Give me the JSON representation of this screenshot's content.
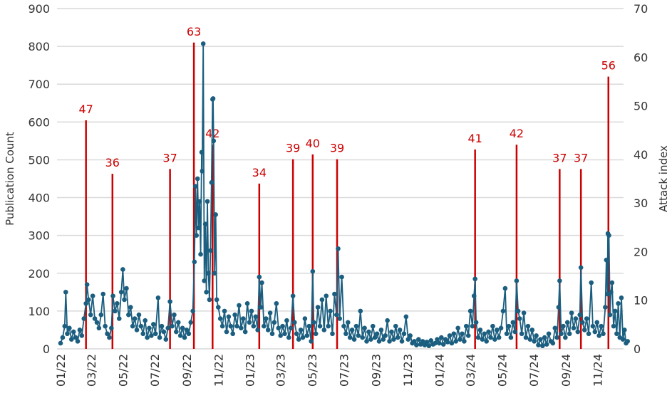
{
  "chart_data": {
    "type": "line",
    "title": "",
    "ylabel": "Publication Count",
    "y2label": "Attack index",
    "ylim": [
      0,
      900
    ],
    "y2lim": [
      0,
      70
    ],
    "yticks": [
      0,
      100,
      200,
      300,
      400,
      500,
      600,
      700,
      800,
      900
    ],
    "y2ticks": [
      0,
      10,
      20,
      30,
      40,
      50,
      60,
      70
    ],
    "grid": true,
    "colors": {
      "publications": "#1b5e7f",
      "attacks": "#cc0000",
      "grid": "#d9d9d9"
    },
    "xticks": [
      {
        "date": "2022-01-01",
        "label": "01/22"
      },
      {
        "date": "2022-03-01",
        "label": "03/22"
      },
      {
        "date": "2022-05-01",
        "label": "05/22"
      },
      {
        "date": "2022-07-01",
        "label": "07/22"
      },
      {
        "date": "2022-09-01",
        "label": "09/22"
      },
      {
        "date": "2022-11-01",
        "label": "11/22"
      },
      {
        "date": "2023-01-01",
        "label": "01/23"
      },
      {
        "date": "2023-03-01",
        "label": "03/23"
      },
      {
        "date": "2023-05-01",
        "label": "05/23"
      },
      {
        "date": "2023-07-01",
        "label": "07/23"
      },
      {
        "date": "2023-09-01",
        "label": "09/23"
      },
      {
        "date": "2023-11-01",
        "label": "11/23"
      },
      {
        "date": "2024-01-01",
        "label": "01/24"
      },
      {
        "date": "2024-03-01",
        "label": "03/24"
      },
      {
        "date": "2024-05-01",
        "label": "05/24"
      },
      {
        "date": "2024-07-01",
        "label": "07/24"
      },
      {
        "date": "2024-09-01",
        "label": "09/24"
      },
      {
        "date": "2024-11-01",
        "label": "11/24"
      }
    ],
    "attacks": [
      {
        "date": "2022-02-19",
        "value": 47
      },
      {
        "date": "2022-04-11",
        "value": 36
      },
      {
        "date": "2022-07-31",
        "value": 37
      },
      {
        "date": "2022-09-15",
        "value": 63
      },
      {
        "date": "2022-10-21",
        "value": 42
      },
      {
        "date": "2023-01-19",
        "value": 34
      },
      {
        "date": "2023-03-25",
        "value": 39
      },
      {
        "date": "2023-05-02",
        "value": 40
      },
      {
        "date": "2023-06-18",
        "value": 39
      },
      {
        "date": "2024-03-10",
        "value": 41
      },
      {
        "date": "2024-05-29",
        "value": 42
      },
      {
        "date": "2024-08-20",
        "value": 37
      },
      {
        "date": "2024-09-30",
        "value": 37
      },
      {
        "date": "2024-11-22",
        "value": 56
      }
    ],
    "publications": [
      [
        "2022-01-01",
        15
      ],
      [
        "2022-01-05",
        30
      ],
      [
        "2022-01-09",
        60
      ],
      [
        "2022-01-11",
        150
      ],
      [
        "2022-01-14",
        40
      ],
      [
        "2022-01-18",
        55
      ],
      [
        "2022-01-22",
        25
      ],
      [
        "2022-01-26",
        45
      ],
      [
        "2022-01-30",
        30
      ],
      [
        "2022-02-03",
        20
      ],
      [
        "2022-02-07",
        50
      ],
      [
        "2022-02-11",
        35
      ],
      [
        "2022-02-15",
        80
      ],
      [
        "2022-02-19",
        120
      ],
      [
        "2022-02-21",
        170
      ],
      [
        "2022-02-24",
        130
      ],
      [
        "2022-02-28",
        90
      ],
      [
        "2022-03-04",
        140
      ],
      [
        "2022-03-08",
        80
      ],
      [
        "2022-03-12",
        70
      ],
      [
        "2022-03-16",
        55
      ],
      [
        "2022-03-20",
        90
      ],
      [
        "2022-03-24",
        145
      ],
      [
        "2022-03-28",
        60
      ],
      [
        "2022-04-01",
        40
      ],
      [
        "2022-04-05",
        30
      ],
      [
        "2022-04-09",
        55
      ],
      [
        "2022-04-12",
        140
      ],
      [
        "2022-04-16",
        100
      ],
      [
        "2022-04-20",
        120
      ],
      [
        "2022-04-24",
        80
      ],
      [
        "2022-04-28",
        150
      ],
      [
        "2022-05-01",
        210
      ],
      [
        "2022-05-04",
        130
      ],
      [
        "2022-05-08",
        160
      ],
      [
        "2022-05-12",
        90
      ],
      [
        "2022-05-16",
        110
      ],
      [
        "2022-05-20",
        60
      ],
      [
        "2022-05-24",
        80
      ],
      [
        "2022-05-28",
        50
      ],
      [
        "2022-06-01",
        90
      ],
      [
        "2022-06-05",
        60
      ],
      [
        "2022-06-09",
        40
      ],
      [
        "2022-06-13",
        75
      ],
      [
        "2022-06-17",
        30
      ],
      [
        "2022-06-21",
        55
      ],
      [
        "2022-06-25",
        35
      ],
      [
        "2022-06-29",
        65
      ],
      [
        "2022-07-03",
        40
      ],
      [
        "2022-07-08",
        135
      ],
      [
        "2022-07-11",
        30
      ],
      [
        "2022-07-15",
        60
      ],
      [
        "2022-07-19",
        45
      ],
      [
        "2022-07-23",
        25
      ],
      [
        "2022-07-27",
        55
      ],
      [
        "2022-07-31",
        125
      ],
      [
        "2022-08-04",
        60
      ],
      [
        "2022-08-08",
        90
      ],
      [
        "2022-08-12",
        45
      ],
      [
        "2022-08-16",
        70
      ],
      [
        "2022-08-20",
        35
      ],
      [
        "2022-08-24",
        55
      ],
      [
        "2022-08-28",
        30
      ],
      [
        "2022-09-01",
        50
      ],
      [
        "2022-09-05",
        40
      ],
      [
        "2022-09-09",
        70
      ],
      [
        "2022-09-13",
        100
      ],
      [
        "2022-09-16",
        230
      ],
      [
        "2022-09-18",
        430
      ],
      [
        "2022-09-20",
        300
      ],
      [
        "2022-09-22",
        450
      ],
      [
        "2022-09-24",
        320
      ],
      [
        "2022-09-26",
        390
      ],
      [
        "2022-09-28",
        250
      ],
      [
        "2022-09-30",
        520
      ],
      [
        "2022-10-01",
        470
      ],
      [
        "2022-10-03",
        807
      ],
      [
        "2022-10-05",
        180
      ],
      [
        "2022-10-07",
        330
      ],
      [
        "2022-10-09",
        150
      ],
      [
        "2022-10-11",
        390
      ],
      [
        "2022-10-13",
        200
      ],
      [
        "2022-10-15",
        130
      ],
      [
        "2022-10-17",
        260
      ],
      [
        "2022-10-19",
        440
      ],
      [
        "2022-10-21",
        660
      ],
      [
        "2022-10-22",
        662
      ],
      [
        "2022-10-23",
        550
      ],
      [
        "2022-10-25",
        200
      ],
      [
        "2022-10-27",
        355
      ],
      [
        "2022-10-29",
        130
      ],
      [
        "2022-11-01",
        110
      ],
      [
        "2022-11-05",
        80
      ],
      [
        "2022-11-09",
        60
      ],
      [
        "2022-11-13",
        100
      ],
      [
        "2022-11-17",
        45
      ],
      [
        "2022-11-21",
        85
      ],
      [
        "2022-11-25",
        60
      ],
      [
        "2022-11-29",
        40
      ],
      [
        "2022-12-03",
        90
      ],
      [
        "2022-12-07",
        60
      ],
      [
        "2022-12-11",
        115
      ],
      [
        "2022-12-15",
        55
      ],
      [
        "2022-12-19",
        80
      ],
      [
        "2022-12-23",
        45
      ],
      [
        "2022-12-27",
        120
      ],
      [
        "2022-12-31",
        70
      ],
      [
        "2023-01-04",
        100
      ],
      [
        "2023-01-08",
        60
      ],
      [
        "2023-01-12",
        85
      ],
      [
        "2023-01-16",
        50
      ],
      [
        "2023-01-19",
        190
      ],
      [
        "2023-01-22",
        110
      ],
      [
        "2023-01-24",
        175
      ],
      [
        "2023-01-28",
        60
      ],
      [
        "2023-02-01",
        80
      ],
      [
        "2023-02-05",
        50
      ],
      [
        "2023-02-09",
        95
      ],
      [
        "2023-02-13",
        40
      ],
      [
        "2023-02-17",
        70
      ],
      [
        "2023-02-21",
        120
      ],
      [
        "2023-02-25",
        55
      ],
      [
        "2023-03-01",
        35
      ],
      [
        "2023-03-05",
        60
      ],
      [
        "2023-03-09",
        40
      ],
      [
        "2023-03-13",
        75
      ],
      [
        "2023-03-17",
        30
      ],
      [
        "2023-03-21",
        55
      ],
      [
        "2023-03-25",
        140
      ],
      [
        "2023-03-28",
        70
      ],
      [
        "2023-04-01",
        40
      ],
      [
        "2023-04-05",
        25
      ],
      [
        "2023-04-09",
        50
      ],
      [
        "2023-04-13",
        30
      ],
      [
        "2023-04-17",
        80
      ],
      [
        "2023-04-21",
        35
      ],
      [
        "2023-04-25",
        60
      ],
      [
        "2023-04-29",
        20
      ],
      [
        "2023-05-02",
        205
      ],
      [
        "2023-05-04",
        70
      ],
      [
        "2023-05-08",
        40
      ],
      [
        "2023-05-12",
        110
      ],
      [
        "2023-05-16",
        60
      ],
      [
        "2023-05-20",
        130
      ],
      [
        "2023-05-24",
        50
      ],
      [
        "2023-05-28",
        140
      ],
      [
        "2023-06-01",
        60
      ],
      [
        "2023-06-05",
        100
      ],
      [
        "2023-06-09",
        40
      ],
      [
        "2023-06-13",
        145
      ],
      [
        "2023-06-17",
        90
      ],
      [
        "2023-06-20",
        265
      ],
      [
        "2023-06-23",
        80
      ],
      [
        "2023-06-27",
        190
      ],
      [
        "2023-07-01",
        60
      ],
      [
        "2023-07-05",
        40
      ],
      [
        "2023-07-09",
        70
      ],
      [
        "2023-07-13",
        30
      ],
      [
        "2023-07-17",
        50
      ],
      [
        "2023-07-21",
        25
      ],
      [
        "2023-07-25",
        60
      ],
      [
        "2023-07-29",
        35
      ],
      [
        "2023-08-02",
        100
      ],
      [
        "2023-08-06",
        30
      ],
      [
        "2023-08-10",
        55
      ],
      [
        "2023-08-14",
        20
      ],
      [
        "2023-08-18",
        45
      ],
      [
        "2023-08-22",
        25
      ],
      [
        "2023-08-26",
        60
      ],
      [
        "2023-08-30",
        30
      ],
      [
        "2023-09-03",
        40
      ],
      [
        "2023-09-07",
        20
      ],
      [
        "2023-09-11",
        50
      ],
      [
        "2023-09-15",
        25
      ],
      [
        "2023-09-19",
        35
      ],
      [
        "2023-09-23",
        75
      ],
      [
        "2023-09-27",
        20
      ],
      [
        "2023-10-01",
        45
      ],
      [
        "2023-10-05",
        25
      ],
      [
        "2023-10-09",
        60
      ],
      [
        "2023-10-13",
        30
      ],
      [
        "2023-10-17",
        50
      ],
      [
        "2023-10-21",
        20
      ],
      [
        "2023-10-25",
        40
      ],
      [
        "2023-10-29",
        85
      ],
      [
        "2023-11-02",
        25
      ],
      [
        "2023-11-06",
        35
      ],
      [
        "2023-11-10",
        15
      ],
      [
        "2023-11-14",
        20
      ],
      [
        "2023-11-18",
        10
      ],
      [
        "2023-11-22",
        25
      ],
      [
        "2023-11-26",
        12
      ],
      [
        "2023-11-30",
        20
      ],
      [
        "2023-12-04",
        10
      ],
      [
        "2023-12-08",
        18
      ],
      [
        "2023-12-12",
        8
      ],
      [
        "2023-12-16",
        22
      ],
      [
        "2023-12-20",
        12
      ],
      [
        "2023-12-24",
        15
      ],
      [
        "2023-12-28",
        25
      ],
      [
        "2024-01-01",
        15
      ],
      [
        "2024-01-05",
        30
      ],
      [
        "2024-01-09",
        12
      ],
      [
        "2024-01-13",
        25
      ],
      [
        "2024-01-17",
        18
      ],
      [
        "2024-01-21",
        35
      ],
      [
        "2024-01-25",
        15
      ],
      [
        "2024-01-29",
        40
      ],
      [
        "2024-02-02",
        20
      ],
      [
        "2024-02-06",
        55
      ],
      [
        "2024-02-10",
        25
      ],
      [
        "2024-02-14",
        40
      ],
      [
        "2024-02-18",
        20
      ],
      [
        "2024-02-22",
        60
      ],
      [
        "2024-02-26",
        35
      ],
      [
        "2024-03-01",
        100
      ],
      [
        "2024-03-05",
        60
      ],
      [
        "2024-03-08",
        140
      ],
      [
        "2024-03-10",
        185
      ],
      [
        "2024-03-12",
        70
      ],
      [
        "2024-03-16",
        30
      ],
      [
        "2024-03-20",
        50
      ],
      [
        "2024-03-24",
        25
      ],
      [
        "2024-03-28",
        40
      ],
      [
        "2024-04-01",
        20
      ],
      [
        "2024-04-05",
        45
      ],
      [
        "2024-04-09",
        30
      ],
      [
        "2024-04-13",
        60
      ],
      [
        "2024-04-17",
        25
      ],
      [
        "2024-04-21",
        50
      ],
      [
        "2024-04-25",
        30
      ],
      [
        "2024-04-29",
        55
      ],
      [
        "2024-05-03",
        100
      ],
      [
        "2024-05-07",
        160
      ],
      [
        "2024-05-10",
        40
      ],
      [
        "2024-05-14",
        60
      ],
      [
        "2024-05-18",
        30
      ],
      [
        "2024-05-22",
        70
      ],
      [
        "2024-05-26",
        45
      ],
      [
        "2024-05-29",
        180
      ],
      [
        "2024-06-01",
        100
      ],
      [
        "2024-06-04",
        80
      ],
      [
        "2024-06-08",
        40
      ],
      [
        "2024-06-12",
        95
      ],
      [
        "2024-06-16",
        30
      ],
      [
        "2024-06-20",
        60
      ],
      [
        "2024-06-24",
        25
      ],
      [
        "2024-06-28",
        50
      ],
      [
        "2024-07-02",
        20
      ],
      [
        "2024-07-06",
        35
      ],
      [
        "2024-07-10",
        10
      ],
      [
        "2024-07-14",
        25
      ],
      [
        "2024-07-18",
        8
      ],
      [
        "2024-07-22",
        30
      ],
      [
        "2024-07-26",
        12
      ],
      [
        "2024-07-30",
        40
      ],
      [
        "2024-08-03",
        20
      ],
      [
        "2024-08-07",
        15
      ],
      [
        "2024-08-11",
        55
      ],
      [
        "2024-08-15",
        30
      ],
      [
        "2024-08-18",
        110
      ],
      [
        "2024-08-20",
        180
      ],
      [
        "2024-08-23",
        40
      ],
      [
        "2024-08-27",
        60
      ],
      [
        "2024-08-31",
        30
      ],
      [
        "2024-09-04",
        70
      ],
      [
        "2024-09-08",
        40
      ],
      [
        "2024-09-12",
        95
      ],
      [
        "2024-09-16",
        55
      ],
      [
        "2024-09-20",
        80
      ],
      [
        "2024-09-24",
        45
      ],
      [
        "2024-09-28",
        90
      ],
      [
        "2024-09-30",
        215
      ],
      [
        "2024-10-03",
        70
      ],
      [
        "2024-10-07",
        50
      ],
      [
        "2024-10-11",
        80
      ],
      [
        "2024-10-15",
        40
      ],
      [
        "2024-10-20",
        175
      ],
      [
        "2024-10-23",
        60
      ],
      [
        "2024-10-27",
        45
      ],
      [
        "2024-10-31",
        70
      ],
      [
        "2024-11-04",
        35
      ],
      [
        "2024-11-08",
        60
      ],
      [
        "2024-11-12",
        40
      ],
      [
        "2024-11-16",
        110
      ],
      [
        "2024-11-18",
        235
      ],
      [
        "2024-11-20",
        145
      ],
      [
        "2024-11-21",
        305
      ],
      [
        "2024-11-23",
        300
      ],
      [
        "2024-11-25",
        90
      ],
      [
        "2024-11-27",
        150
      ],
      [
        "2024-11-29",
        175
      ],
      [
        "2024-12-02",
        60
      ],
      [
        "2024-12-05",
        100
      ],
      [
        "2024-12-08",
        40
      ],
      [
        "2024-12-11",
        120
      ],
      [
        "2024-12-14",
        30
      ],
      [
        "2024-12-17",
        135
      ],
      [
        "2024-12-20",
        25
      ],
      [
        "2024-12-23",
        50
      ],
      [
        "2024-12-26",
        15
      ],
      [
        "2024-12-29",
        20
      ]
    ]
  }
}
